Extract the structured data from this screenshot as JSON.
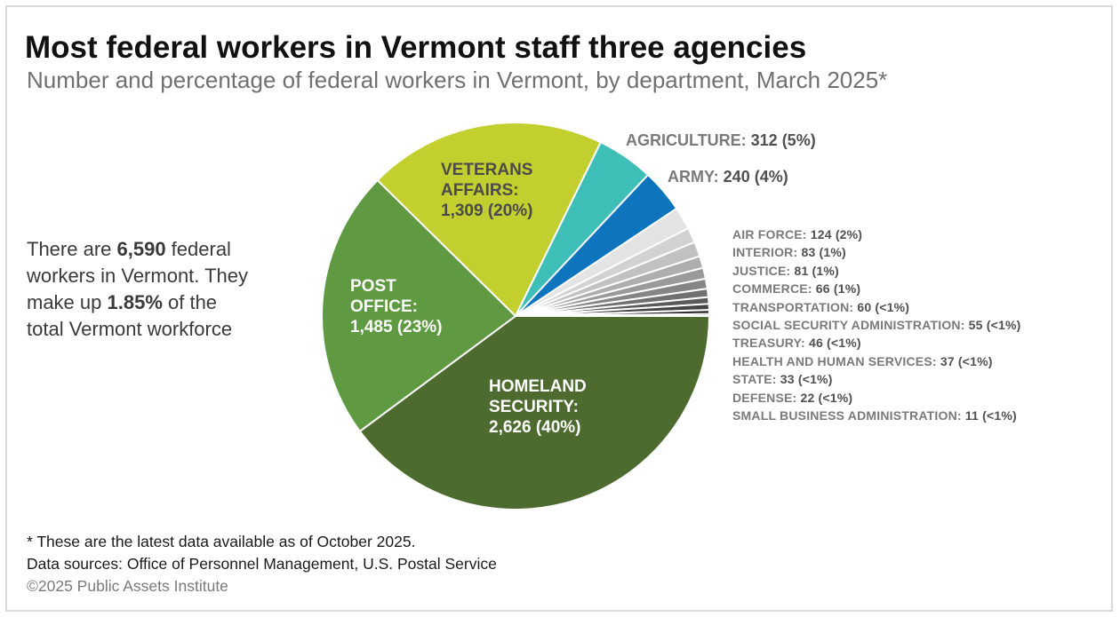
{
  "title": "Most federal workers in Vermont staff three agencies",
  "subtitle": "Number and percentage of federal workers in Vermont, by department, March 2025*",
  "callout": {
    "pre": "There are ",
    "total": "6,590",
    "mid": " federal workers in Vermont. They make up ",
    "share": "1.85%",
    "post": " of the total Vermont workforce"
  },
  "footer": {
    "note": "* These are the latest data available as of October 2025.",
    "sources": "Data sources: Office of Personnel Management, U.S. Postal Service",
    "copyright": "©2025 Public Assets Institute"
  },
  "chart_data": {
    "type": "pie",
    "title": "Most federal workers in Vermont staff three agencies",
    "subtitle": "Number and percentage of federal workers in Vermont, by department, March 2025*",
    "total": 6590,
    "start": "3 o'clock, clockwise",
    "slices": [
      {
        "label": "HOMELAND SECURITY",
        "value": 2626,
        "pct": "40%",
        "color": "#4e6b2f"
      },
      {
        "label": "POST OFFICE",
        "value": 1485,
        "pct": "23%",
        "color": "#5f9a42"
      },
      {
        "label": "VETERANS AFFAIRS",
        "value": 1309,
        "pct": "20%",
        "color": "#c3ce2f"
      },
      {
        "label": "AGRICULTURE",
        "value": 312,
        "pct": "5%",
        "color": "#3dbfb7"
      },
      {
        "label": "ARMY",
        "value": 240,
        "pct": "4%",
        "color": "#0d74bd"
      },
      {
        "label": "AIR FORCE",
        "value": 124,
        "pct": "2%",
        "color": "#e3e3e3"
      },
      {
        "label": "INTERIOR",
        "value": 83,
        "pct": "1%",
        "color": "#d2d2d2"
      },
      {
        "label": "JUSTICE",
        "value": 81,
        "pct": "1%",
        "color": "#c1c1c1"
      },
      {
        "label": "COMMERCE",
        "value": 66,
        "pct": "1%",
        "color": "#aeaeae"
      },
      {
        "label": "TRANSPORTATION",
        "value": 60,
        "pct": "<1%",
        "color": "#9a9a9a"
      },
      {
        "label": "SOCIAL SECURITY ADMINISTRATION",
        "value": 55,
        "pct": "<1%",
        "color": "#858585"
      },
      {
        "label": "TREASURY",
        "value": 46,
        "pct": "<1%",
        "color": "#707070"
      },
      {
        "label": "HEALTH AND HUMAN SERVICES",
        "value": 37,
        "pct": "<1%",
        "color": "#5a5a5a"
      },
      {
        "label": "STATE",
        "value": 33,
        "pct": "<1%",
        "color": "#444444"
      },
      {
        "label": "DEFENSE",
        "value": 22,
        "pct": "<1%",
        "color": "#2e2e2e"
      },
      {
        "label": "SMALL BUSINESS ADMINISTRATION",
        "value": 11,
        "pct": "<1%",
        "color": "#1a1a1a"
      }
    ],
    "inside_labels": [
      {
        "lines": [
          "HOMELAND",
          "SECURITY:",
          "2,626 (40%)"
        ],
        "color": "#ffffff"
      },
      {
        "lines": [
          "POST",
          "OFFICE:",
          "1,485 (23%)"
        ],
        "color": "#ffffff"
      },
      {
        "lines": [
          "VETERANS",
          "AFFAIRS:",
          "1,309 (20%)"
        ],
        "color": "#4a4a4a"
      }
    ],
    "outside_labels": [
      {
        "name": "AGRICULTURE:",
        "value": "312 (5%)"
      },
      {
        "name": "ARMY:",
        "value": "240 (4%)"
      },
      {
        "name": "AIR FORCE:",
        "value": "124 (2%)"
      },
      {
        "name": "INTERIOR:",
        "value": "83 (1%)"
      },
      {
        "name": "JUSTICE:",
        "value": "81 (1%)"
      },
      {
        "name": "COMMERCE:",
        "value": "66 (1%)"
      },
      {
        "name": "TRANSPORTATION:",
        "value": "60 (<1%)"
      },
      {
        "name": "SOCIAL SECURITY ADMINISTRATION:",
        "value": "55 (<1%)"
      },
      {
        "name": "TREASURY:",
        "value": "46 (<1%)"
      },
      {
        "name": "HEALTH AND HUMAN SERVICES:",
        "value": "37 (<1%)"
      },
      {
        "name": "STATE:",
        "value": "33 (<1%)"
      },
      {
        "name": "DEFENSE:",
        "value": "22 (<1%)"
      },
      {
        "name": "SMALL BUSINESS ADMINISTRATION:",
        "value": "11 (<1%)"
      }
    ]
  }
}
